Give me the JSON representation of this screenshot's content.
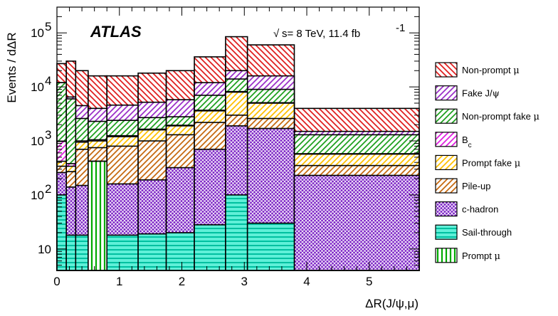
{
  "chart_data": {
    "type": "area",
    "stacked": true,
    "xlabel": "ΔR(J/ψ,μ)",
    "ylabel": "Events / dΔR",
    "yscale": "log",
    "xlim": [
      0,
      5.8
    ],
    "ylim": [
      4,
      300000
    ],
    "x_ticks": [
      "0",
      "1",
      "2",
      "3",
      "4",
      "5"
    ],
    "y_ticks": [
      {
        "value": 10,
        "base": "10",
        "exp": ""
      },
      {
        "value": 100,
        "base": "10",
        "exp": "2"
      },
      {
        "value": 1000,
        "base": "10",
        "exp": "3"
      },
      {
        "value": 10000,
        "base": "10",
        "exp": "4"
      },
      {
        "value": 100000,
        "base": "10",
        "exp": "5"
      }
    ],
    "experiment_label": "ATLAS",
    "energy_label": "s= 8 TeV, 11.4 fb",
    "energy_sup": "-1",
    "legend_position": "right",
    "bin_edges": [
      0,
      0.15,
      0.3,
      0.5,
      0.8,
      1.3,
      1.75,
      2.2,
      2.7,
      3.05,
      3.8,
      5.8
    ],
    "series_cumulative_note": "values are cumulative stack tops (top of each component) per bin",
    "series": [
      {
        "name": "Prompt μ",
        "label_main": "Prompt ",
        "label_greek": "μ",
        "label_sub": "",
        "color": "#00aa00",
        "pattern": "vertical",
        "values": [
          4,
          4,
          4,
          420,
          4,
          4,
          4,
          4,
          4,
          4,
          4
        ]
      },
      {
        "name": "Sail-through",
        "label_main": "Sail-through",
        "label_greek": "",
        "label_sub": "",
        "color": "#00c0a0",
        "fill": "#5ff0d8",
        "pattern": "horizontal",
        "values": [
          100,
          18,
          18,
          420,
          18,
          19,
          20,
          28,
          100,
          30,
          4
        ]
      },
      {
        "name": "c-hadron",
        "label_main": "c-hadron",
        "label_greek": "",
        "label_sub": "",
        "color": "#7a1fc4",
        "pattern": "crosshatch",
        "values": [
          260,
          140,
          150,
          420,
          160,
          190,
          320,
          700,
          1900,
          1700,
          230
        ]
      },
      {
        "name": "Pile-up",
        "label_main": "Pile-up",
        "label_greek": "",
        "label_sub": "",
        "color": "#c66a10",
        "pattern": "diagonal-up",
        "values": [
          340,
          270,
          700,
          750,
          800,
          1000,
          1300,
          2200,
          3000,
          2600,
          350
        ]
      },
      {
        "name": "Prompt fake μ",
        "label_main": "Prompt fake ",
        "label_greek": "μ",
        "label_sub": "",
        "color": "#ffc000",
        "pattern": "diagonal-up",
        "values": [
          420,
          340,
          950,
          1000,
          1200,
          1600,
          1900,
          3600,
          8000,
          5000,
          570
        ]
      },
      {
        "name": "Bc",
        "label_main": "B",
        "label_greek": "",
        "label_sub": "c",
        "color": "#e020e0",
        "pattern": "diagonal-up",
        "values": [
          980,
          380,
          1000,
          1050,
          1250,
          1650,
          1950,
          3700,
          8200,
          5100,
          580
        ]
      },
      {
        "name": "Non-prompt fake μ",
        "label_main": "Non-prompt fake ",
        "label_greek": "μ",
        "label_sub": "",
        "color": "#20a020",
        "pattern": "diagonal-up",
        "values": [
          12000,
          6000,
          2600,
          2300,
          2400,
          2700,
          2800,
          7000,
          14000,
          9000,
          1300
        ]
      },
      {
        "name": "Fake J/ψ",
        "label_main": "Fake J/",
        "label_greek": "ψ",
        "label_sub": "",
        "color": "#9b30c8",
        "pattern": "diagonal-up",
        "values": [
          12000,
          6500,
          4500,
          4000,
          4600,
          5200,
          5800,
          12000,
          20000,
          16000,
          1500
        ]
      },
      {
        "name": "Non-prompt μ",
        "label_main": "Non-prompt ",
        "label_greek": "μ",
        "label_sub": "",
        "color": "#e02020",
        "pattern": "diagonal-down",
        "values": [
          27000,
          30000,
          20000,
          16000,
          16000,
          18000,
          20000,
          36000,
          85000,
          60000,
          4000
        ]
      }
    ]
  }
}
